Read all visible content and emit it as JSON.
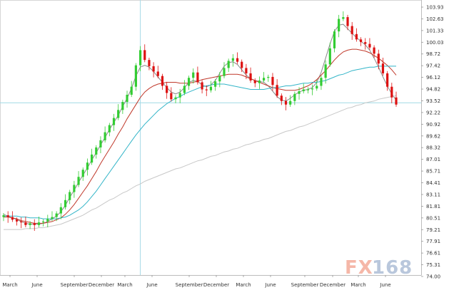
{
  "chart_data": {
    "type": "candlestick",
    "title": "",
    "xlabel": "",
    "ylabel": "",
    "ylim": [
      74.0,
      104.5
    ],
    "grid": false,
    "y_ticks": [
      "103.93",
      "102.63",
      "101.33",
      "100.03",
      "98.72",
      "97.42",
      "96.12",
      "94.82",
      "93.52",
      "92.22",
      "90.92",
      "89.62",
      "88.32",
      "87.01",
      "85.71",
      "84.41",
      "83.11",
      "81.81",
      "80.51",
      "79.21",
      "77.91",
      "76.61",
      "75.31",
      "74.00"
    ],
    "x_ticks": [
      "March",
      "June",
      "September",
      "December",
      "March",
      "June",
      "September",
      "December",
      "March",
      "June",
      "September",
      "December",
      "March",
      "June"
    ],
    "reference_line": {
      "y": 93.3,
      "color": "#9fd9e6"
    },
    "cursor_line_tick": "March",
    "bull_color": "#33cc33",
    "bear_color": "#dd1111",
    "closes": [
      80.7,
      80.5,
      80.2,
      80.0,
      79.9,
      79.6,
      79.8,
      79.6,
      79.9,
      80.0,
      80.3,
      80.5,
      80.9,
      81.6,
      82.4,
      83.3,
      84.1,
      85.0,
      85.8,
      86.6,
      87.5,
      88.3,
      89.1,
      90.0,
      90.8,
      91.6,
      92.5,
      93.4,
      94.2,
      95.1,
      97.5,
      99.2,
      98.1,
      97.4,
      96.8,
      96.3,
      95.2,
      94.4,
      93.7,
      93.9,
      94.4,
      95.2,
      96.1,
      96.7,
      95.6,
      94.8,
      94.7,
      95.1,
      95.7,
      96.3,
      97.2,
      98.0,
      98.3,
      97.9,
      97.2,
      96.6,
      95.8,
      95.5,
      95.8,
      96.1,
      96.2,
      95.3,
      94.1,
      93.5,
      93.1,
      93.5,
      94.3,
      94.6,
      94.8,
      94.8,
      94.9,
      95.2,
      96.1,
      97.6,
      99.4,
      101.3,
      102.7,
      102.9,
      101.9,
      101.0,
      100.4,
      100.1,
      99.9,
      99.5,
      98.8,
      97.7,
      96.6,
      95.1,
      93.9,
      93.1
    ],
    "sma_short": [
      80.8,
      80.6,
      80.4,
      80.2,
      80.0,
      79.8,
      79.7,
      79.7,
      79.7,
      79.8,
      80.0,
      80.3,
      80.6,
      81.1,
      81.8,
      82.7,
      83.5,
      84.4,
      85.2,
      86.0,
      86.9,
      87.7,
      88.6,
      89.4,
      90.3,
      91.1,
      91.9,
      92.9,
      93.8,
      94.9,
      96.3,
      97.3,
      97.5,
      97.3,
      96.8,
      96.2,
      95.6,
      95.0,
      94.5,
      94.3,
      94.5,
      95.0,
      95.6,
      95.8,
      95.7,
      95.3,
      95.1,
      95.3,
      95.8,
      96.6,
      97.4,
      97.8,
      97.9,
      97.6,
      97.0,
      96.4,
      96.0,
      95.8,
      95.7,
      95.6,
      95.2,
      94.6,
      94.0,
      93.6,
      93.5,
      93.8,
      94.2,
      94.5,
      94.7,
      94.8,
      95.0,
      95.6,
      96.7,
      98.3,
      99.9,
      101.3,
      102.0,
      102.1,
      101.6,
      101.1,
      100.6,
      100.2,
      99.8,
      99.2,
      98.3,
      97.3,
      96.2,
      95.2,
      94.3,
      93.6
    ],
    "sma_mid": [
      80.5,
      80.5,
      80.4,
      80.3,
      80.1,
      80.0,
      79.9,
      79.8,
      79.8,
      79.8,
      79.9,
      80.0,
      80.2,
      80.4,
      80.8,
      81.3,
      81.9,
      82.6,
      83.3,
      84.0,
      84.8,
      85.6,
      86.5,
      87.3,
      88.1,
      88.9,
      89.8,
      90.6,
      91.5,
      92.3,
      93.1,
      93.9,
      94.5,
      94.9,
      95.2,
      95.4,
      95.5,
      95.6,
      95.6,
      95.6,
      95.5,
      95.5,
      95.5,
      95.6,
      95.7,
      95.9,
      96.0,
      96.1,
      96.2,
      96.3,
      96.4,
      96.5,
      96.5,
      96.5,
      96.4,
      96.2,
      96.0,
      95.8,
      95.6,
      95.4,
      95.2,
      95.0,
      94.9,
      94.8,
      94.7,
      94.7,
      94.7,
      94.8,
      95.0,
      95.2,
      95.5,
      95.9,
      96.4,
      96.9,
      97.5,
      98.1,
      98.6,
      99.0,
      99.2,
      99.3,
      99.3,
      99.2,
      99.1,
      98.9,
      98.6,
      98.3,
      97.9,
      97.5,
      97.0,
      96.4
    ],
    "sma_long": [
      80.6,
      80.6,
      80.6,
      80.6,
      80.5,
      80.5,
      80.4,
      80.4,
      80.4,
      80.3,
      80.3,
      80.3,
      80.3,
      80.4,
      80.5,
      80.7,
      81.0,
      81.3,
      81.7,
      82.2,
      82.8,
      83.4,
      84.1,
      84.8,
      85.5,
      86.2,
      86.9,
      87.6,
      88.3,
      89.0,
      89.7,
      90.3,
      90.9,
      91.4,
      91.9,
      92.4,
      92.8,
      93.2,
      93.5,
      93.8,
      94.0,
      94.3,
      94.5,
      94.7,
      94.9,
      95.1,
      95.2,
      95.3,
      95.4,
      95.4,
      95.4,
      95.3,
      95.2,
      95.1,
      95.0,
      94.9,
      94.8,
      94.8,
      94.8,
      94.8,
      94.9,
      95.0,
      95.0,
      95.1,
      95.2,
      95.2,
      95.3,
      95.4,
      95.5,
      95.5,
      95.6,
      95.6,
      95.7,
      95.8,
      96.0,
      96.2,
      96.4,
      96.5,
      96.7,
      96.9,
      97.0,
      97.1,
      97.2,
      97.3,
      97.3,
      97.4,
      97.4,
      97.4,
      97.4,
      97.4
    ],
    "sma_very_long": [
      79.1,
      79.1,
      79.1,
      79.1,
      79.1,
      79.2,
      79.2,
      79.2,
      79.3,
      79.3,
      79.4,
      79.5,
      79.6,
      79.7,
      79.9,
      80.1,
      80.3,
      80.5,
      80.7,
      81.0,
      81.3,
      81.5,
      81.8,
      82.1,
      82.4,
      82.6,
      82.9,
      83.2,
      83.4,
      83.7,
      84.0,
      84.2,
      84.5,
      84.7,
      84.9,
      85.1,
      85.3,
      85.5,
      85.7,
      85.9,
      86.0,
      86.2,
      86.4,
      86.6,
      86.8,
      86.9,
      87.1,
      87.3,
      87.4,
      87.6,
      87.8,
      87.9,
      88.1,
      88.2,
      88.4,
      88.6,
      88.7,
      88.9,
      89.0,
      89.2,
      89.3,
      89.5,
      89.7,
      89.9,
      90.1,
      90.2,
      90.4,
      90.6,
      90.7,
      90.9,
      91.1,
      91.3,
      91.5,
      91.7,
      91.9,
      92.1,
      92.3,
      92.5,
      92.7,
      92.8,
      93.0,
      93.1,
      93.3,
      93.4,
      93.5,
      93.7,
      93.8,
      93.9,
      94.0,
      94.1
    ],
    "series": [
      {
        "color": "#8a8a8a"
      },
      {
        "color": "#c0392b"
      },
      {
        "color": "#33b5c8"
      },
      {
        "color": "#c8c8c8"
      }
    ],
    "watermark": {
      "text_a": "FX",
      "text_b": "168",
      "color_a": "#f5b7a8",
      "color_b": "#b9c7dc"
    }
  }
}
